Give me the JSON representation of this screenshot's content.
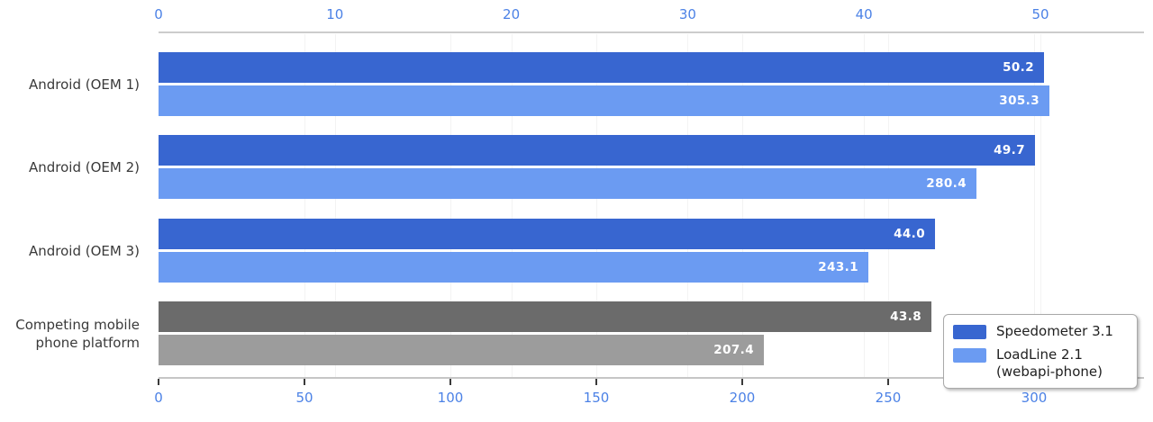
{
  "chart_data": {
    "type": "bar",
    "orientation": "horizontal",
    "categories": [
      "Android (OEM 1)",
      "Android (OEM 2)",
      "Android (OEM 3)",
      "Competing mobile\nphone platform"
    ],
    "series": [
      {
        "name": "Speedometer 3.1",
        "axis": "top",
        "values": [
          50.2,
          49.7,
          44.0,
          43.8
        ]
      },
      {
        "name": "LoadLine 2.1 (webapi-phone)",
        "axis": "bottom",
        "values": [
          305.3,
          280.4,
          243.1,
          207.4
        ]
      }
    ],
    "value_labels": [
      [
        "50.2",
        "305.3"
      ],
      [
        "49.7",
        "280.4"
      ],
      [
        "44.0",
        "243.1"
      ],
      [
        "43.8",
        "207.4"
      ]
    ],
    "top_axis": {
      "ticks": [
        0,
        10,
        20,
        30,
        40,
        50
      ],
      "tick_color": "#4c82e6"
    },
    "bottom_axis": {
      "ticks": [
        0,
        50,
        100,
        150,
        200,
        250,
        300
      ],
      "tick_color": "#4c82e6"
    },
    "row_colors": [
      [
        "#3866d0",
        "#6b9bf2"
      ],
      [
        "#3866d0",
        "#6b9bf2"
      ],
      [
        "#3866d0",
        "#6b9bf2"
      ],
      [
        "#6b6b6b",
        "#9c9c9c"
      ]
    ],
    "grid": true,
    "legend_position": "bottom-right",
    "title": ""
  },
  "legend": {
    "items": [
      {
        "label_lines": [
          "Speedometer 3.1"
        ],
        "color": "#3866d0"
      },
      {
        "label_lines": [
          "LoadLine 2.1",
          "(webapi-phone)"
        ],
        "color": "#6b9bf2"
      }
    ]
  },
  "colors": {
    "series1_blue": "#3866d0",
    "series2_blue": "#6b9bf2",
    "competitor_dark_gray": "#6b6b6b",
    "competitor_light_gray": "#9c9c9c",
    "axis_tick_label_blue": "#4c82e6",
    "value_label_white": "#ffffff",
    "category_text": "#3a3a3a",
    "axis_line_gray": "#cccccc"
  }
}
